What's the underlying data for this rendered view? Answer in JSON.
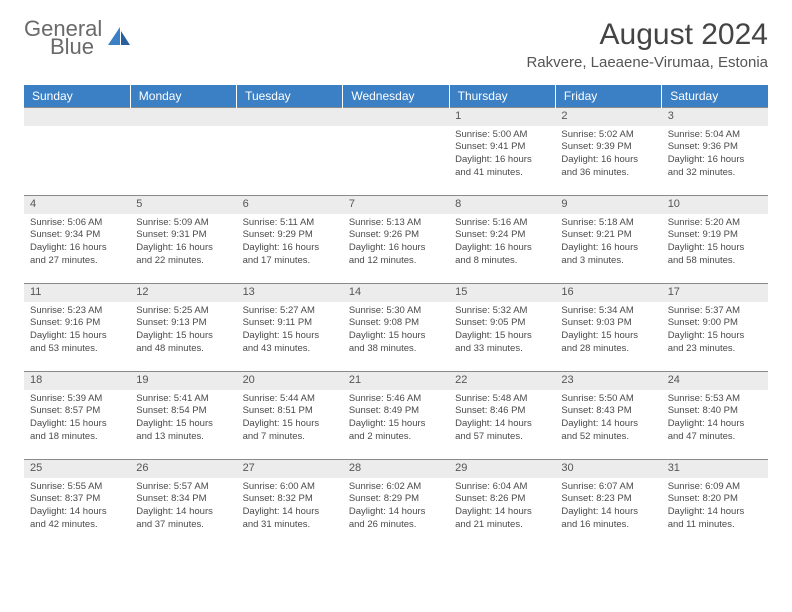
{
  "logo": {
    "line1": "General",
    "line2": "Blue"
  },
  "title": "August 2024",
  "location": "Rakvere, Laeaene-Virumaa, Estonia",
  "colors": {
    "header_bg": "#3b7fc4",
    "header_text": "#ffffff",
    "daynum_bg": "#ececec",
    "border": "#8a8a8a",
    "body_text": "#4a4a4a",
    "page_bg": "#ffffff"
  },
  "day_headers": [
    "Sunday",
    "Monday",
    "Tuesday",
    "Wednesday",
    "Thursday",
    "Friday",
    "Saturday"
  ],
  "weeks": [
    [
      null,
      null,
      null,
      null,
      {
        "n": "1",
        "sr": "5:00 AM",
        "ss": "9:41 PM",
        "dl": "16 hours and 41 minutes."
      },
      {
        "n": "2",
        "sr": "5:02 AM",
        "ss": "9:39 PM",
        "dl": "16 hours and 36 minutes."
      },
      {
        "n": "3",
        "sr": "5:04 AM",
        "ss": "9:36 PM",
        "dl": "16 hours and 32 minutes."
      }
    ],
    [
      {
        "n": "4",
        "sr": "5:06 AM",
        "ss": "9:34 PM",
        "dl": "16 hours and 27 minutes."
      },
      {
        "n": "5",
        "sr": "5:09 AM",
        "ss": "9:31 PM",
        "dl": "16 hours and 22 minutes."
      },
      {
        "n": "6",
        "sr": "5:11 AM",
        "ss": "9:29 PM",
        "dl": "16 hours and 17 minutes."
      },
      {
        "n": "7",
        "sr": "5:13 AM",
        "ss": "9:26 PM",
        "dl": "16 hours and 12 minutes."
      },
      {
        "n": "8",
        "sr": "5:16 AM",
        "ss": "9:24 PM",
        "dl": "16 hours and 8 minutes."
      },
      {
        "n": "9",
        "sr": "5:18 AM",
        "ss": "9:21 PM",
        "dl": "16 hours and 3 minutes."
      },
      {
        "n": "10",
        "sr": "5:20 AM",
        "ss": "9:19 PM",
        "dl": "15 hours and 58 minutes."
      }
    ],
    [
      {
        "n": "11",
        "sr": "5:23 AM",
        "ss": "9:16 PM",
        "dl": "15 hours and 53 minutes."
      },
      {
        "n": "12",
        "sr": "5:25 AM",
        "ss": "9:13 PM",
        "dl": "15 hours and 48 minutes."
      },
      {
        "n": "13",
        "sr": "5:27 AM",
        "ss": "9:11 PM",
        "dl": "15 hours and 43 minutes."
      },
      {
        "n": "14",
        "sr": "5:30 AM",
        "ss": "9:08 PM",
        "dl": "15 hours and 38 minutes."
      },
      {
        "n": "15",
        "sr": "5:32 AM",
        "ss": "9:05 PM",
        "dl": "15 hours and 33 minutes."
      },
      {
        "n": "16",
        "sr": "5:34 AM",
        "ss": "9:03 PM",
        "dl": "15 hours and 28 minutes."
      },
      {
        "n": "17",
        "sr": "5:37 AM",
        "ss": "9:00 PM",
        "dl": "15 hours and 23 minutes."
      }
    ],
    [
      {
        "n": "18",
        "sr": "5:39 AM",
        "ss": "8:57 PM",
        "dl": "15 hours and 18 minutes."
      },
      {
        "n": "19",
        "sr": "5:41 AM",
        "ss": "8:54 PM",
        "dl": "15 hours and 13 minutes."
      },
      {
        "n": "20",
        "sr": "5:44 AM",
        "ss": "8:51 PM",
        "dl": "15 hours and 7 minutes."
      },
      {
        "n": "21",
        "sr": "5:46 AM",
        "ss": "8:49 PM",
        "dl": "15 hours and 2 minutes."
      },
      {
        "n": "22",
        "sr": "5:48 AM",
        "ss": "8:46 PM",
        "dl": "14 hours and 57 minutes."
      },
      {
        "n": "23",
        "sr": "5:50 AM",
        "ss": "8:43 PM",
        "dl": "14 hours and 52 minutes."
      },
      {
        "n": "24",
        "sr": "5:53 AM",
        "ss": "8:40 PM",
        "dl": "14 hours and 47 minutes."
      }
    ],
    [
      {
        "n": "25",
        "sr": "5:55 AM",
        "ss": "8:37 PM",
        "dl": "14 hours and 42 minutes."
      },
      {
        "n": "26",
        "sr": "5:57 AM",
        "ss": "8:34 PM",
        "dl": "14 hours and 37 minutes."
      },
      {
        "n": "27",
        "sr": "6:00 AM",
        "ss": "8:32 PM",
        "dl": "14 hours and 31 minutes."
      },
      {
        "n": "28",
        "sr": "6:02 AM",
        "ss": "8:29 PM",
        "dl": "14 hours and 26 minutes."
      },
      {
        "n": "29",
        "sr": "6:04 AM",
        "ss": "8:26 PM",
        "dl": "14 hours and 21 minutes."
      },
      {
        "n": "30",
        "sr": "6:07 AM",
        "ss": "8:23 PM",
        "dl": "14 hours and 16 minutes."
      },
      {
        "n": "31",
        "sr": "6:09 AM",
        "ss": "8:20 PM",
        "dl": "14 hours and 11 minutes."
      }
    ]
  ],
  "labels": {
    "sunrise": "Sunrise:",
    "sunset": "Sunset:",
    "daylight": "Daylight:"
  }
}
